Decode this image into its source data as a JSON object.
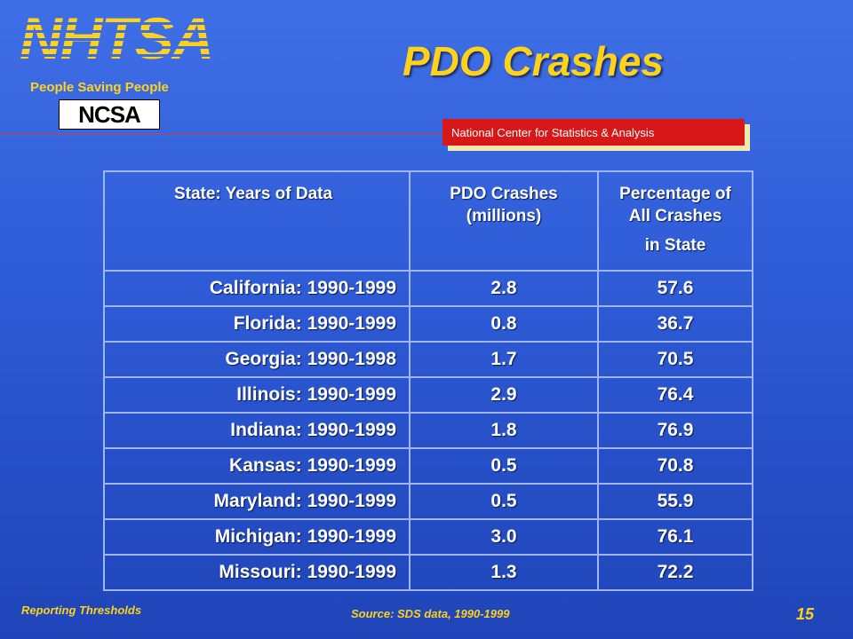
{
  "header": {
    "logo_text": "NHTSA",
    "tagline": "People Saving People",
    "ncsa_logo": "NCSA",
    "title": "PDO Crashes",
    "banner": "National Center for Statistics & Analysis"
  },
  "table": {
    "headers": [
      "State: Years of Data",
      "PDO Crashes (millions)",
      "Percentage of All Crashes in State"
    ],
    "header_lines": {
      "h2a": "PDO Crashes",
      "h2b": "(millions)",
      "h3a": "Percentage of",
      "h3b": "All Crashes",
      "h3c": "in State"
    },
    "rows": [
      {
        "state": "California: 1990-1999",
        "pdo": "2.8",
        "pct": "57.6"
      },
      {
        "state": "Florida: 1990-1999",
        "pdo": "0.8",
        "pct": "36.7"
      },
      {
        "state": "Georgia: 1990-1998",
        "pdo": "1.7",
        "pct": "70.5"
      },
      {
        "state": "Illinois: 1990-1999",
        "pdo": "2.9",
        "pct": "76.4"
      },
      {
        "state": "Indiana: 1990-1999",
        "pdo": "1.8",
        "pct": "76.9"
      },
      {
        "state": "Kansas: 1990-1999",
        "pdo": "0.5",
        "pct": "70.8"
      },
      {
        "state": "Maryland: 1990-1999",
        "pdo": "0.5",
        "pct": "55.9"
      },
      {
        "state": "Michigan: 1990-1999",
        "pdo": "3.0",
        "pct": "76.1"
      },
      {
        "state": "Missouri: 1990-1999",
        "pdo": "1.3",
        "pct": "72.2"
      }
    ]
  },
  "footer": {
    "left": "Reporting Thresholds",
    "source": "Source: SDS data, 1990-1999",
    "page_number": "15"
  },
  "colors": {
    "accent": "#ffd21a",
    "banner": "#d81818",
    "background": "#2e5bd6"
  }
}
